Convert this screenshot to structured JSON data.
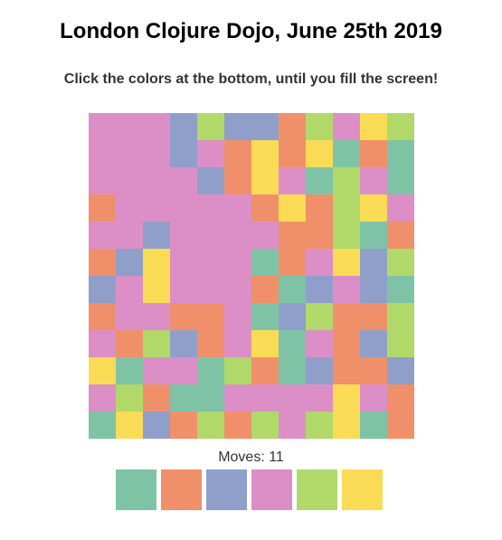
{
  "header": {
    "title": "London Clojure Dojo, June 25th 2019",
    "instruction": "Click the colors at the bottom, until you fill the screen!"
  },
  "colors": {
    "G": "#7fc3a7",
    "O": "#f0906b",
    "B": "#909fc9",
    "P": "#dc8fc6",
    "L": "#b0d96a",
    "Y": "#fadb55"
  },
  "board": {
    "rows": [
      "PPPBLBBOLPYL",
      "PPPBPOYOYGOG",
      "PPPPBOYPGLPG",
      "OPPPPPOYOLYP",
      "PPBPPPPOOLGO",
      "OBYPPPGOPYBL",
      "BPYPPPOGBPBG",
      "OPPOOPGBLOOL",
      "POLBOPYGPOBL",
      "YGPPGLOGBOOB",
      "PLOGGPPPPYPO",
      "GYBOLOLPLYGO"
    ]
  },
  "status": {
    "moves_text": "Moves: 11",
    "moves": 11
  },
  "palette": [
    "G",
    "O",
    "B",
    "P",
    "L",
    "Y"
  ]
}
